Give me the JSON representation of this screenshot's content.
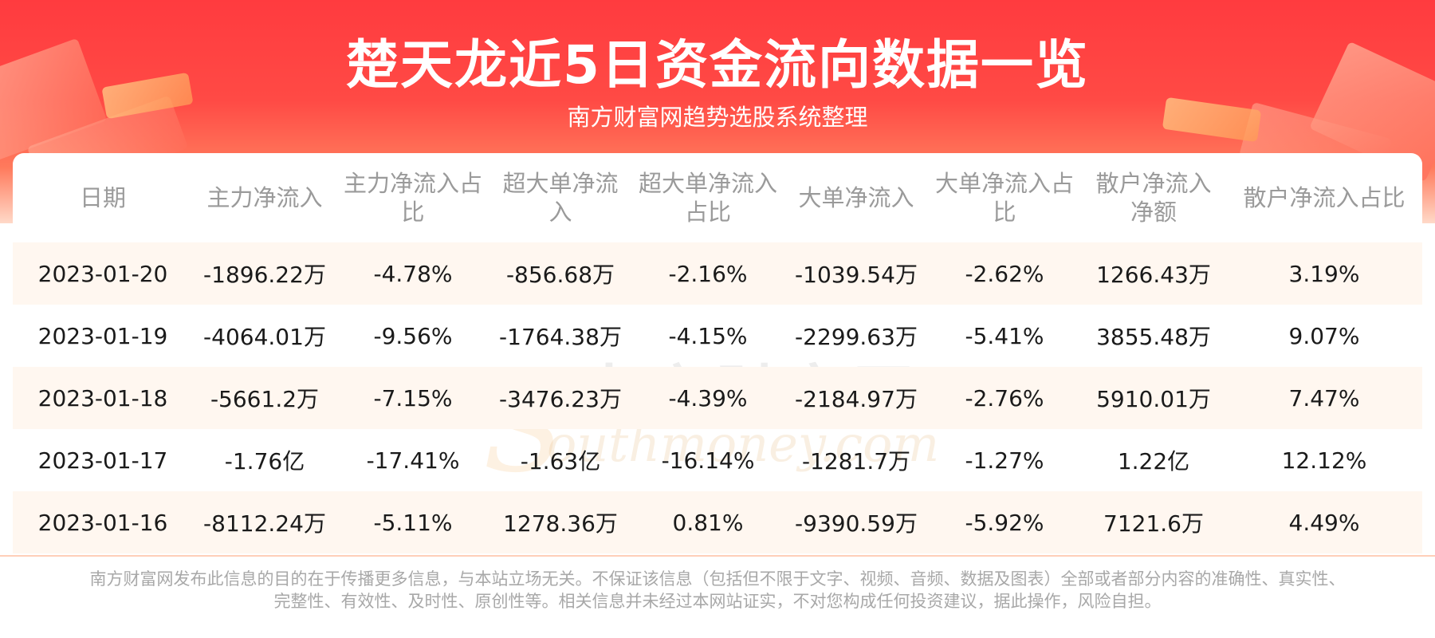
{
  "header": {
    "title": "楚天龙近5日资金流向数据一览",
    "subtitle": "南方财富网趋势选股系统整理"
  },
  "watermark": {
    "cn": "南方财富网",
    "en": "outhmoney.com",
    "s": "S"
  },
  "table": {
    "columns": [
      "日期",
      "主力净流入",
      "主力净流入占比",
      "超大单净流入",
      "超大单净流入占比",
      "大单净流入",
      "大单净流入占比",
      "散户净流入净额",
      "散户净流入占比"
    ],
    "rows": [
      [
        "2023-01-20",
        "-1896.22万",
        "-4.78%",
        "-856.68万",
        "-2.16%",
        "-1039.54万",
        "-2.62%",
        "1266.43万",
        "3.19%"
      ],
      [
        "2023-01-19",
        "-4064.01万",
        "-9.56%",
        "-1764.38万",
        "-4.15%",
        "-2299.63万",
        "-5.41%",
        "3855.48万",
        "9.07%"
      ],
      [
        "2023-01-18",
        "-5661.2万",
        "-7.15%",
        "-3476.23万",
        "-4.39%",
        "-2184.97万",
        "-2.76%",
        "5910.01万",
        "7.47%"
      ],
      [
        "2023-01-17",
        "-1.76亿",
        "-17.41%",
        "-1.63亿",
        "-16.14%",
        "-1281.7万",
        "-1.27%",
        "1.22亿",
        "12.12%"
      ],
      [
        "2023-01-16",
        "-8112.24万",
        "-5.11%",
        "1278.36万",
        "0.81%",
        "-9390.59万",
        "-5.92%",
        "7121.6万",
        "4.49%"
      ]
    ]
  },
  "footer": {
    "line1": "南方财富网发布此信息的目的在于传播更多信息，与本站立场无关。不保证该信息（包括但不限于文字、视频、音频、数据及图表）全部或者部分内容的准确性、真实性、",
    "line2": "完整性、有效性、及时性、原创性等。相关信息并未经过本网站证实，不对您构成任何投资建议，据此操作，风险自担。"
  },
  "colors": {
    "banner_red": "#ff3b3f",
    "header_text": "#9a9a9a",
    "stripe": "#fff7f0"
  }
}
